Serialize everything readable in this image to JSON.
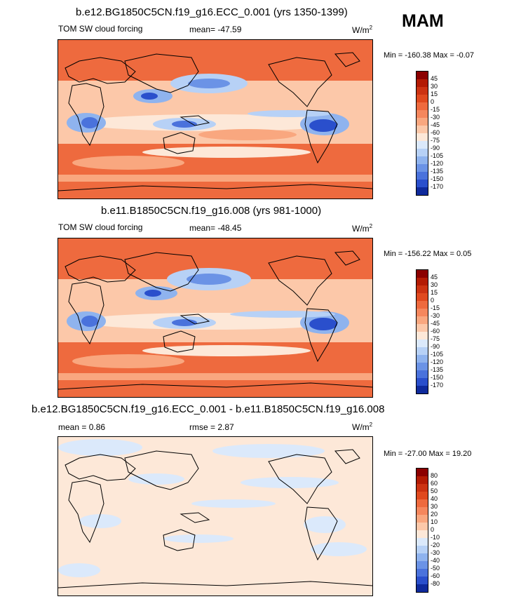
{
  "season": "MAM",
  "panels": [
    {
      "title": "b.e12.BG1850C5CN.f19_g16.ECC_0.001 (yrs 1350-1399)",
      "variable": "TOM SW cloud forcing",
      "mean_label": "mean= -47.59",
      "units_label": "W/m",
      "units_sup": "2",
      "minmax": "Min = -160.38 Max =  -0.07"
    },
    {
      "title": "b.e11.B1850C5CN.f19_g16.008 (yrs 981-1000)",
      "variable": "TOM SW cloud forcing",
      "mean_label": "mean= -48.45",
      "units_label": "W/m",
      "units_sup": "2",
      "minmax": "Min = -156.22 Max =   0.05"
    },
    {
      "title": "b.e12.BG1850C5CN.f19_g16.ECC_0.001 - b.e11.B1850C5CN.f19_g16.008",
      "mean_label": "mean =   0.86",
      "rmse_label": "rmse =    2.87",
      "units_label": "W/m",
      "units_sup": "2",
      "minmax": "Min = -27.00 Max =  19.20"
    }
  ],
  "colorbars": {
    "field": {
      "labels": [
        "45",
        "30",
        "15",
        "0",
        "-15",
        "-30",
        "-45",
        "-60",
        "-75",
        "-90",
        "-105",
        "-120",
        "-135",
        "-150",
        "-170"
      ],
      "colors": [
        "#8b0000",
        "#b31b04",
        "#cc3312",
        "#e04a1f",
        "#ee6a3e",
        "#f5875d",
        "#f9a77f",
        "#fcc8a9",
        "#fde8d8",
        "#dbe9fb",
        "#b7d1f6",
        "#8fb3ee",
        "#6b93e6",
        "#4a72dc",
        "#2a4fcc",
        "#0f2a9c"
      ]
    },
    "diff": {
      "labels": [
        "80",
        "60",
        "50",
        "40",
        "30",
        "20",
        "10",
        "0",
        "-10",
        "-20",
        "-30",
        "-40",
        "-50",
        "-60",
        "-80"
      ],
      "colors": [
        "#8b0000",
        "#b31b04",
        "#cc3312",
        "#e04a1f",
        "#ee6a3e",
        "#f5875d",
        "#f9a77f",
        "#fcc8a9",
        "#fde8d8",
        "#dbe9fb",
        "#b7d1f6",
        "#8fb3ee",
        "#6b93e6",
        "#4a72dc",
        "#2a4fcc",
        "#0f2a9c"
      ]
    }
  },
  "chart_data": [
    {
      "type": "heatmap",
      "title": "b.e12.BG1850C5CN.f19_g16.ECC_0.001 (yrs 1350-1399)",
      "variable": "TOM SW cloud forcing",
      "units": "W/m2",
      "mean": -47.59,
      "min": -160.38,
      "max": -0.07,
      "contour_levels": [
        -170,
        -150,
        -135,
        -120,
        -105,
        -90,
        -75,
        -60,
        -45,
        -30,
        -15,
        0,
        15,
        30,
        45
      ]
    },
    {
      "type": "heatmap",
      "title": "b.e11.B1850C5CN.f19_g16.008 (yrs 981-1000)",
      "variable": "TOM SW cloud forcing",
      "units": "W/m2",
      "mean": -48.45,
      "min": -156.22,
      "max": 0.05,
      "contour_levels": [
        -170,
        -150,
        -135,
        -120,
        -105,
        -90,
        -75,
        -60,
        -45,
        -30,
        -15,
        0,
        15,
        30,
        45
      ]
    },
    {
      "type": "heatmap",
      "title": "b.e12.BG1850C5CN.f19_g16.ECC_0.001 - b.e11.B1850C5CN.f19_g16.008",
      "units": "W/m2",
      "mean": 0.86,
      "rmse": 2.87,
      "min": -27.0,
      "max": 19.2,
      "contour_levels": [
        -80,
        -60,
        -50,
        -40,
        -30,
        -20,
        -10,
        0,
        10,
        20,
        30,
        40,
        50,
        60,
        80
      ]
    }
  ]
}
